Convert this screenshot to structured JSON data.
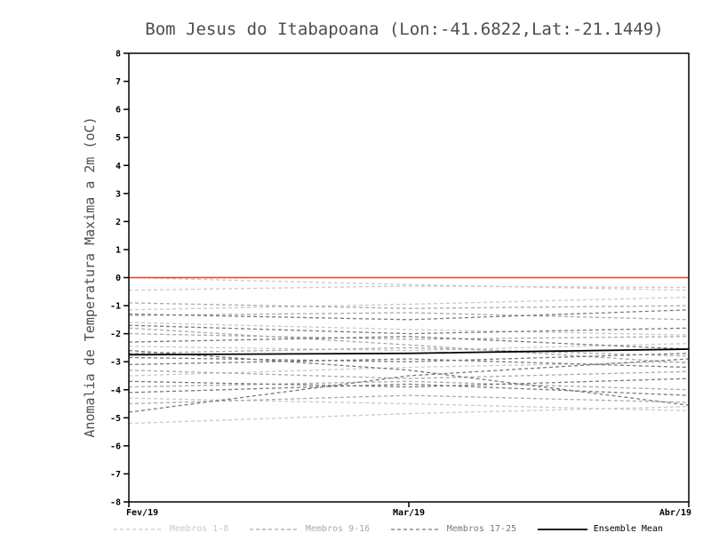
{
  "chart_data": {
    "type": "line",
    "title": "Bom Jesus do Itabapoana (Lon:-41.6822,Lat:-21.1449)",
    "ylabel": "Anomalia de Temperatura Maxima a 2m (oC)",
    "xlabel": "",
    "x_categories": [
      "Fev/19",
      "Mar/19",
      "Abr/19"
    ],
    "ylim": [
      -8,
      8
    ],
    "ytick_step": 1,
    "grid": false,
    "zero_line_color": "#ef3b2c",
    "legend_position": "bottom",
    "groups": [
      {
        "name": "Membros 1-8",
        "color": "#c9c9c9",
        "style": "dashed",
        "series": [
          [
            0.0,
            -0.25,
            -0.45
          ],
          [
            -0.45,
            -0.3,
            -0.35
          ],
          [
            -1.15,
            -0.95,
            -0.7
          ],
          [
            -1.6,
            -1.85,
            -2.05
          ],
          [
            -2.45,
            -2.6,
            -2.35
          ],
          [
            -3.5,
            -3.2,
            -3.0
          ],
          [
            -4.3,
            -4.5,
            -4.75
          ],
          [
            -5.2,
            -4.85,
            -4.6
          ]
        ]
      },
      {
        "name": "Membros 9-16",
        "color": "#a9a9a9",
        "style": "dashed",
        "series": [
          [
            -0.9,
            -1.1,
            -1.0
          ],
          [
            -1.35,
            -1.25,
            -1.5
          ],
          [
            -2.0,
            -2.2,
            -2.1
          ],
          [
            -2.7,
            -2.5,
            -2.8
          ],
          [
            -3.3,
            -3.6,
            -3.35
          ],
          [
            -3.9,
            -3.7,
            -4.0
          ],
          [
            -4.5,
            -4.2,
            -4.45
          ],
          [
            -1.8,
            -2.4,
            -3.05
          ]
        ]
      },
      {
        "name": "Membros 17-25",
        "color": "#787878",
        "style": "dashed",
        "series": [
          [
            -1.3,
            -1.5,
            -1.15
          ],
          [
            -1.7,
            -2.0,
            -1.8
          ],
          [
            -2.3,
            -2.1,
            -2.55
          ],
          [
            -2.85,
            -3.0,
            -2.7
          ],
          [
            -3.1,
            -2.9,
            -3.2
          ],
          [
            -3.7,
            -3.9,
            -3.6
          ],
          [
            -4.1,
            -3.8,
            -4.2
          ],
          [
            -2.6,
            -3.3,
            -4.55
          ],
          [
            -4.8,
            -3.5,
            -2.9
          ]
        ]
      }
    ],
    "mean": {
      "name": "Ensemble Mean",
      "color": "#000000",
      "style": "solid",
      "values": [
        -2.75,
        -2.7,
        -2.55
      ]
    },
    "legend": [
      {
        "label": "Membros 1-8",
        "color": "#c9c9c9",
        "dash": true
      },
      {
        "label": "Membros 9-16",
        "color": "#a9a9a9",
        "dash": true
      },
      {
        "label": "Membros 17-25",
        "color": "#787878",
        "dash": true
      },
      {
        "label": "Ensemble Mean",
        "color": "#000000",
        "dash": false
      }
    ]
  }
}
